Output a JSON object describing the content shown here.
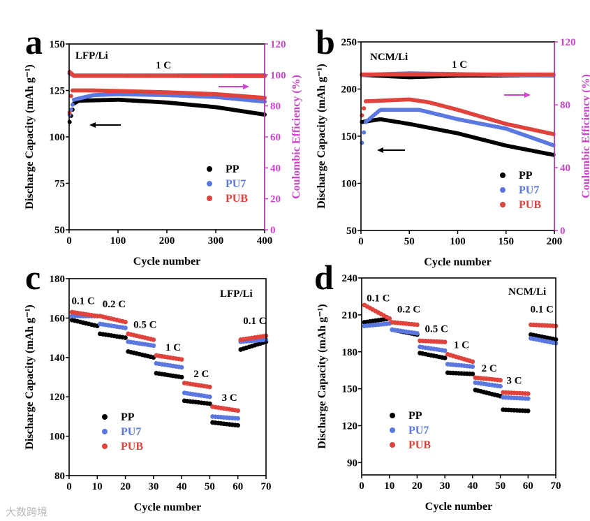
{
  "watermark": "大数跨境",
  "colors": {
    "PP": "#000000",
    "PU7": "#5b78e0",
    "PUB": "#e0423c",
    "ce_axis": "#cc44cc"
  },
  "chart_data": [
    {
      "panel": "a",
      "type": "scatter",
      "title": "LFP/Li",
      "rate_label": "1 C",
      "xlabel": "Cycle number",
      "ylabel": "Discharge Capacity (mAh g⁻¹)",
      "y2label": "Coulombic Efficiency (%)",
      "xlim": [
        0,
        400
      ],
      "ylim": [
        50,
        150
      ],
      "y2lim": [
        0,
        120
      ],
      "xticks": [
        "0",
        "100",
        "200",
        "300",
        "400"
      ],
      "yticks": [
        "50",
        "75",
        "100",
        "125",
        "150"
      ],
      "y2ticks": [
        "0",
        "20",
        "40",
        "60",
        "80",
        "100",
        "120"
      ],
      "legend": [
        "PP",
        "PU7",
        "PUB"
      ],
      "legend_position": "lower-right",
      "series": [
        {
          "name": "PP",
          "points": [
            [
              1,
              108
            ],
            [
              10,
              118
            ],
            [
              20,
              119.5
            ],
            [
              100,
              120
            ],
            [
              200,
              118.5
            ],
            [
              300,
              116
            ],
            [
              400,
              112
            ]
          ]
        },
        {
          "name": "PU7",
          "points": [
            [
              1,
              112
            ],
            [
              10,
              120
            ],
            [
              50,
              122.5
            ],
            [
              100,
              123
            ],
            [
              200,
              122.5
            ],
            [
              300,
              121.5
            ],
            [
              400,
              119
            ]
          ]
        },
        {
          "name": "PUB",
          "points": [
            [
              1,
              113
            ],
            [
              5,
              125
            ],
            [
              50,
              125
            ],
            [
              200,
              124
            ],
            [
              300,
              123
            ],
            [
              400,
              121
            ]
          ]
        }
      ],
      "ce_series": [
        {
          "name": "PP",
          "points": [
            [
              1,
              101
            ],
            [
              10,
              99.6
            ],
            [
              400,
              99.6
            ]
          ]
        },
        {
          "name": "PU7",
          "points": [
            [
              1,
              101
            ],
            [
              10,
              99.5
            ],
            [
              400,
              99.4
            ]
          ]
        },
        {
          "name": "PUB",
          "points": [
            [
              1,
              102
            ],
            [
              10,
              99.5
            ],
            [
              400,
              99.3
            ]
          ]
        }
      ]
    },
    {
      "panel": "b",
      "type": "scatter",
      "title": "NCM/Li",
      "rate_label": "1 C",
      "xlabel": "Cycle number",
      "ylabel": "Discharge Capacity (mAh g⁻¹)",
      "y2label": "Coulombic Efficiency (%)",
      "xlim": [
        0,
        200
      ],
      "ylim": [
        50,
        250
      ],
      "y2lim": [
        0,
        120
      ],
      "xticks": [
        "0",
        "50",
        "100",
        "150",
        "200"
      ],
      "yticks": [
        "50",
        "100",
        "150",
        "200",
        "250"
      ],
      "y2ticks": [
        "0",
        "40",
        "80",
        "120"
      ],
      "legend": [
        "PP",
        "PU7",
        "PUB"
      ],
      "legend_position": "lower-right",
      "series": [
        {
          "name": "PP",
          "points": [
            [
              1,
              165
            ],
            [
              20,
              168
            ],
            [
              50,
              163
            ],
            [
              100,
              153
            ],
            [
              150,
              140
            ],
            [
              200,
              130
            ]
          ]
        },
        {
          "name": "PU7",
          "points": [
            [
              1,
              143
            ],
            [
              5,
              165
            ],
            [
              20,
              178
            ],
            [
              60,
              178
            ],
            [
              100,
              168
            ],
            [
              150,
              158
            ],
            [
              200,
              140
            ]
          ]
        },
        {
          "name": "PUB",
          "points": [
            [
              1,
              172
            ],
            [
              5,
              187
            ],
            [
              50,
              189
            ],
            [
              70,
              186
            ],
            [
              100,
              178
            ],
            [
              150,
              163
            ],
            [
              200,
              152
            ]
          ]
        }
      ],
      "ce_series": [
        {
          "name": "PP",
          "points": [
            [
              1,
              99
            ],
            [
              50,
              97.5
            ],
            [
              100,
              98.5
            ],
            [
              200,
              98.8
            ]
          ]
        },
        {
          "name": "PU7",
          "points": [
            [
              1,
              99
            ],
            [
              50,
              100
            ],
            [
              100,
              99.5
            ],
            [
              200,
              98.5
            ]
          ]
        },
        {
          "name": "PUB",
          "points": [
            [
              1,
              99.3
            ],
            [
              200,
              99.3
            ]
          ]
        }
      ]
    },
    {
      "panel": "c",
      "type": "scatter",
      "title": "LFP/Li",
      "xlabel": "Cycle number",
      "ylabel": "Discharge Capacity (mAh g⁻¹)",
      "xlim": [
        0,
        70
      ],
      "ylim": [
        80,
        180
      ],
      "xticks": [
        "0",
        "10",
        "20",
        "30",
        "40",
        "50",
        "60",
        "70"
      ],
      "yticks": [
        "80",
        "100",
        "120",
        "140",
        "160",
        "180"
      ],
      "legend": [
        "PP",
        "PU7",
        "PUB"
      ],
      "legend_position": "lower-left",
      "rates": [
        {
          "label": "0.1 C",
          "at": [
            5,
            167
          ]
        },
        {
          "label": "0.2 C",
          "at": [
            16,
            165.5
          ]
        },
        {
          "label": "0.5 C",
          "at": [
            27,
            155
          ]
        },
        {
          "label": "1 C",
          "at": [
            37,
            143.5
          ]
        },
        {
          "label": "2 C",
          "at": [
            47,
            130
          ]
        },
        {
          "label": "3 C",
          "at": [
            57,
            118
          ]
        },
        {
          "label": "0.1 C",
          "at": [
            66,
            157
          ]
        }
      ],
      "series": [
        {
          "name": "PP",
          "segments": [
            [
              159,
              156
            ],
            [
              152,
              150
            ],
            [
              143,
              140
            ],
            [
              132,
              130
            ],
            [
              118,
              116.5
            ],
            [
              107,
              105.5
            ],
            [
              144,
              148
            ]
          ]
        },
        {
          "name": "PU7",
          "segments": [
            [
              161,
              161
            ],
            [
              157,
              155
            ],
            [
              148,
              146
            ],
            [
              137,
              135
            ],
            [
              122,
              120
            ],
            [
              110,
              109
            ],
            [
              148,
              149
            ]
          ]
        },
        {
          "name": "PUB",
          "segments": [
            [
              163,
              161
            ],
            [
              161,
              158
            ],
            [
              152,
              149
            ],
            [
              141,
              139
            ],
            [
              127,
              125
            ],
            [
              115,
              113
            ],
            [
              149,
              151
            ]
          ]
        }
      ]
    },
    {
      "panel": "d",
      "type": "scatter",
      "title": "NCM/Li",
      "xlabel": "Cycle number",
      "ylabel": "Discharge Capacity (mAh g⁻¹)",
      "xlim": [
        0,
        70
      ],
      "ylim": [
        80,
        240
      ],
      "xticks": [
        "0",
        "10",
        "20",
        "30",
        "40",
        "50",
        "60",
        "70"
      ],
      "yticks": [
        "90",
        "120",
        "150",
        "180",
        "210",
        "240"
      ],
      "legend": [
        "PP",
        "PU7",
        "PUB"
      ],
      "legend_position": "lower-left",
      "rates": [
        {
          "label": "0.1 C",
          "at": [
            6,
            221
          ]
        },
        {
          "label": "0.2 C",
          "at": [
            17,
            212
          ]
        },
        {
          "label": "0.5 C",
          "at": [
            27,
            196
          ]
        },
        {
          "label": "1 C",
          "at": [
            36,
            183
          ]
        },
        {
          "label": "2 C",
          "at": [
            46,
            164
          ]
        },
        {
          "label": "3 C",
          "at": [
            55,
            154
          ]
        },
        {
          "label": "0.1 C",
          "at": [
            65,
            212
          ]
        }
      ],
      "series": [
        {
          "name": "PP",
          "segments": [
            [
              204,
              207
            ],
            [
              198,
              194
            ],
            [
              179,
              175
            ],
            [
              163,
              162
            ],
            [
              149,
              144
            ],
            [
              133,
              132
            ],
            [
              194,
              190
            ]
          ]
        },
        {
          "name": "PU7",
          "segments": [
            [
              201,
              203
            ],
            [
              198,
              195
            ],
            [
              184,
              181
            ],
            [
              170,
              168
            ],
            [
              155,
              152
            ],
            [
              143,
              142
            ],
            [
              191,
              187
            ]
          ]
        },
        {
          "name": "PUB",
          "segments": [
            [
              218,
              207
            ],
            [
              204,
              202
            ],
            [
              189,
              188
            ],
            [
              178,
              172
            ],
            [
              159,
              157
            ],
            [
              147,
              146
            ],
            [
              202,
              201
            ]
          ]
        }
      ]
    }
  ]
}
